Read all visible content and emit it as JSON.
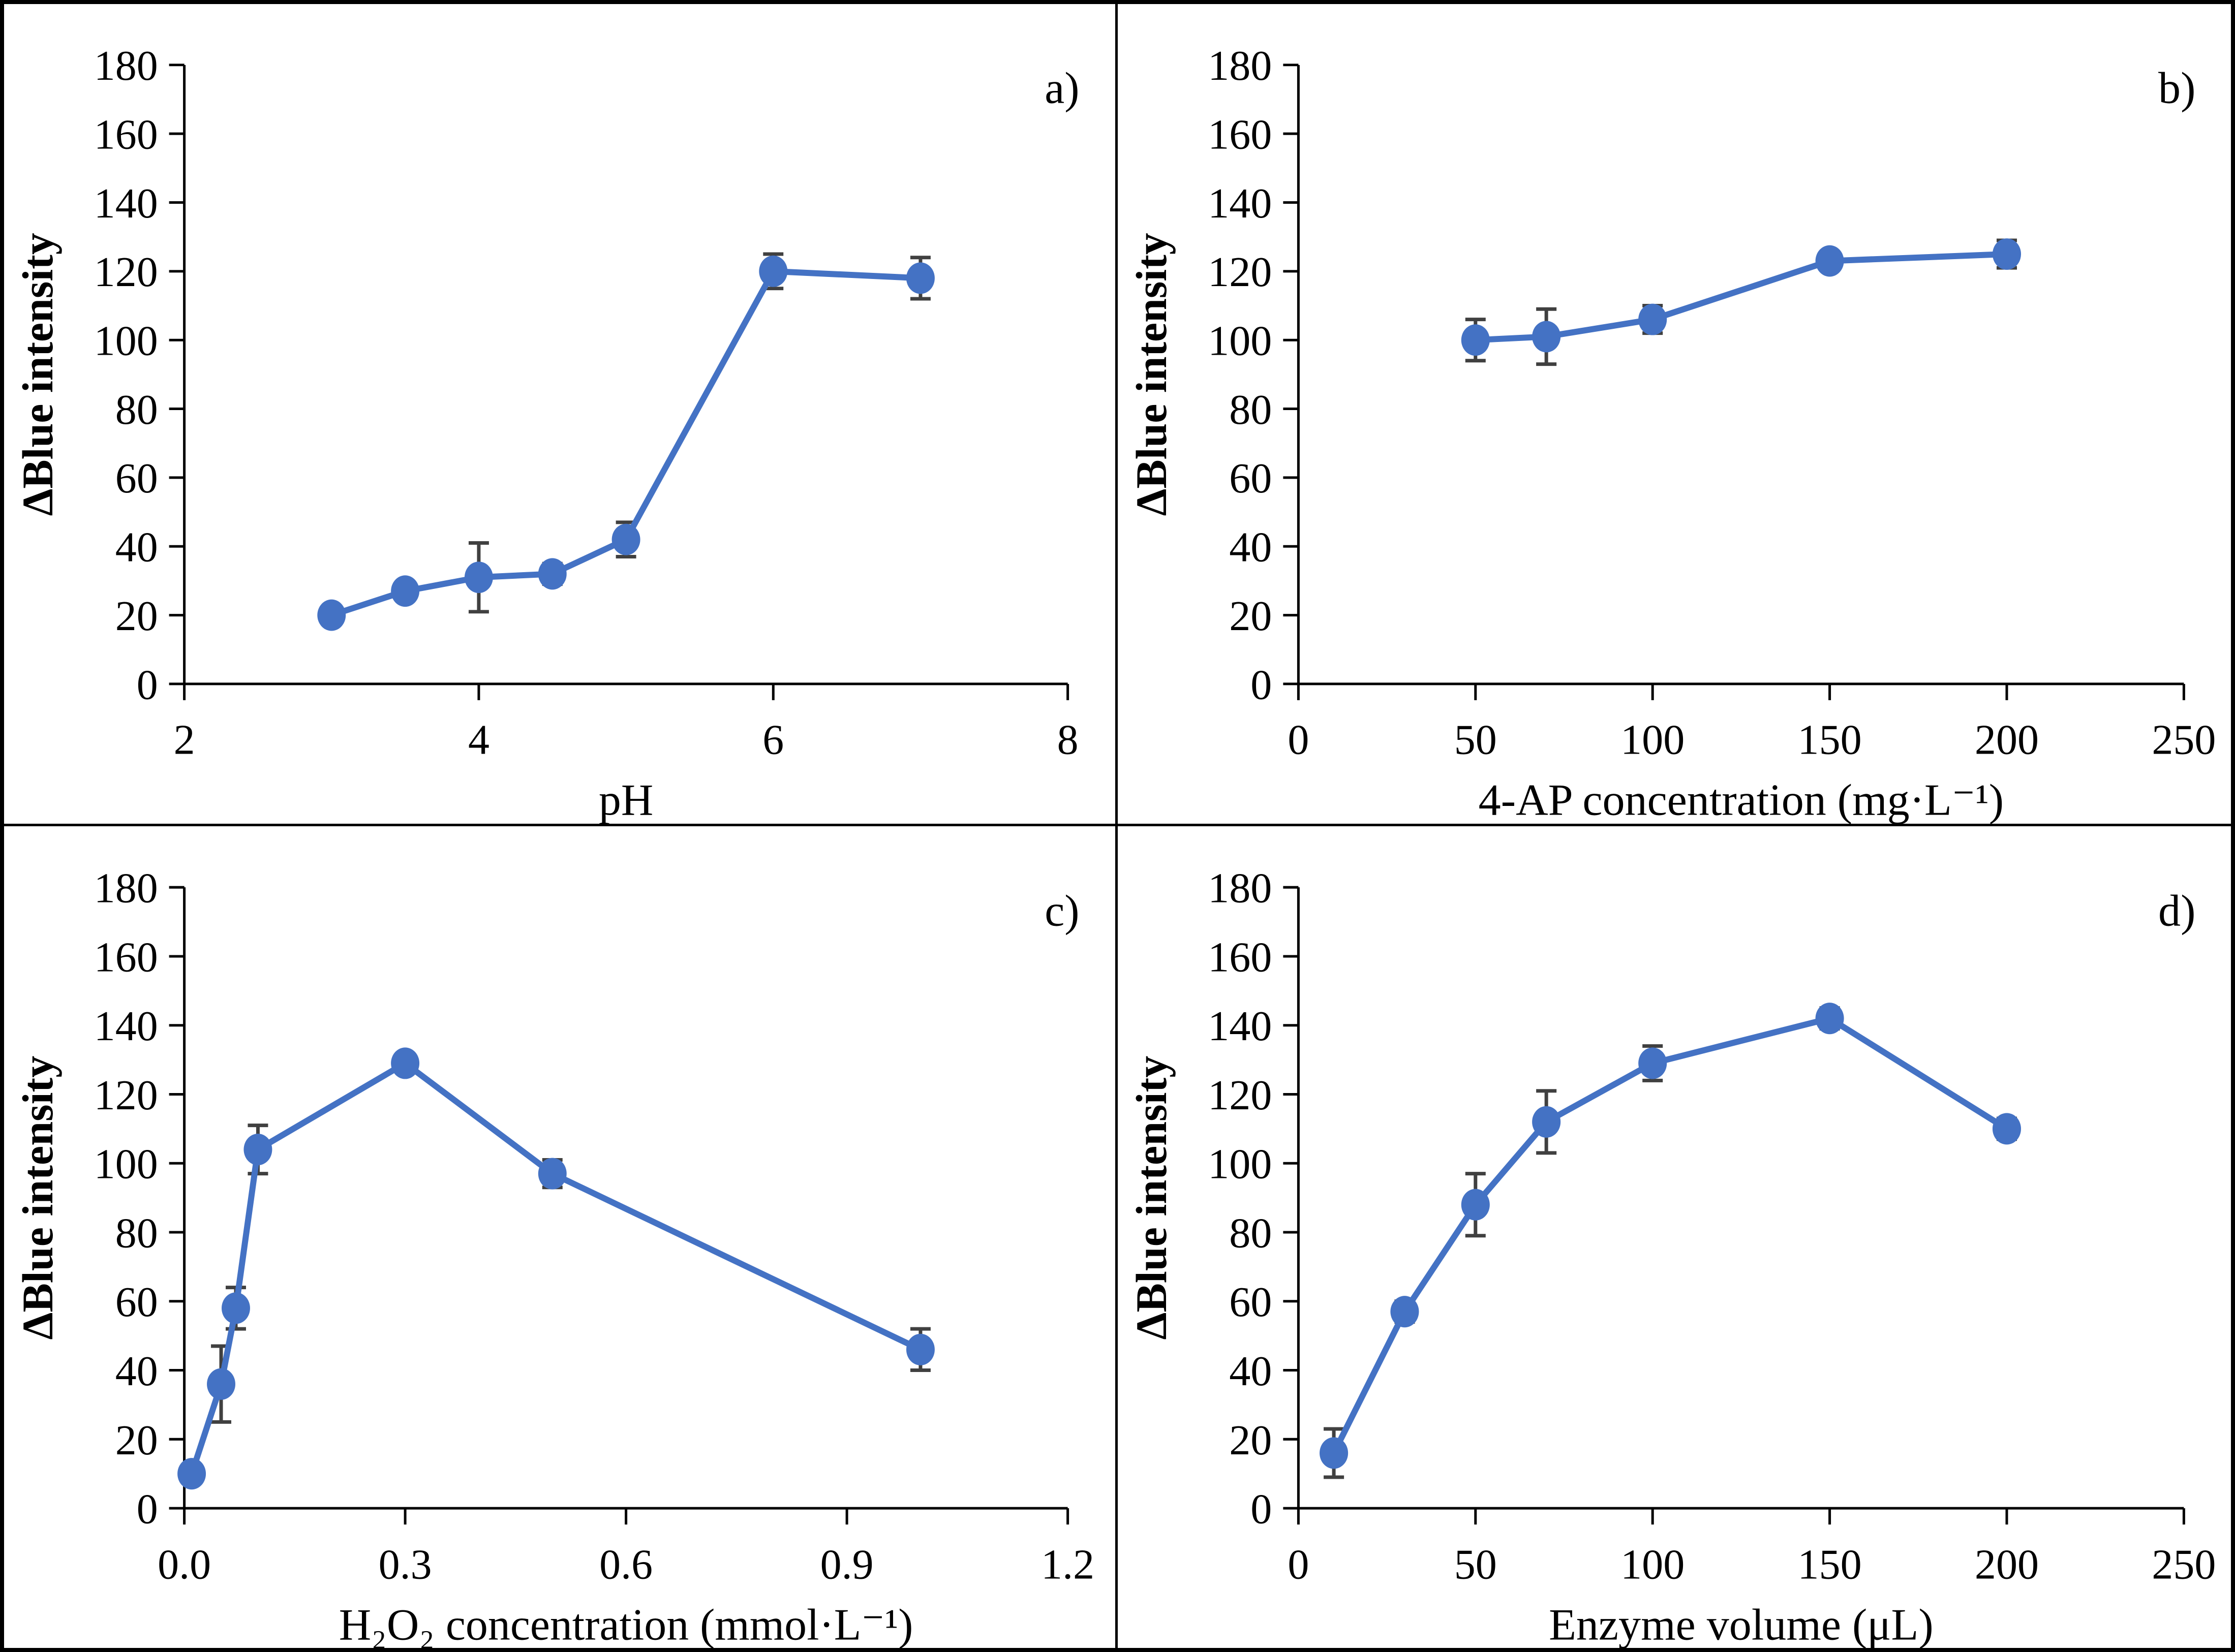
{
  "figure": {
    "background": "#ffffff",
    "border_color": "#000000",
    "panel_count": 4
  },
  "colors": {
    "series": "#4472C4",
    "marker_fill": "#4472C4",
    "error_bar": "#404040",
    "axis": "#000000",
    "text": "#000000"
  },
  "chart_data": [
    {
      "type": "line",
      "panel_label": "a)",
      "xlabel": "pH",
      "ylabel": "ΔBlue intensity",
      "x": [
        3,
        3.5,
        4,
        4.5,
        5,
        6,
        7
      ],
      "y": [
        20,
        27,
        31,
        32,
        42,
        120,
        118
      ],
      "yerr": [
        2,
        2,
        10,
        3,
        5,
        5,
        6
      ],
      "xlim": [
        2,
        8
      ],
      "ylim": [
        0,
        180
      ],
      "xticks": [
        2,
        4,
        6,
        8
      ],
      "xtick_labels": [
        "2",
        "4",
        "6",
        "8"
      ],
      "yticks": [
        0,
        20,
        40,
        60,
        80,
        100,
        120,
        140,
        160,
        180
      ],
      "ytick_labels": [
        "0",
        "20",
        "40",
        "60",
        "80",
        "100",
        "120",
        "140",
        "160",
        "180"
      ],
      "grid": false,
      "legend": null,
      "marker": "circle"
    },
    {
      "type": "line",
      "panel_label": "b)",
      "xlabel": "4-AP concentration (mg·L⁻¹)",
      "ylabel": "ΔBlue intensity",
      "x": [
        50,
        70,
        100,
        150,
        200
      ],
      "y": [
        100,
        101,
        106,
        123,
        125
      ],
      "yerr": [
        6,
        8,
        4,
        2,
        4
      ],
      "xlim": [
        0,
        250
      ],
      "ylim": [
        0,
        180
      ],
      "xticks": [
        0,
        50,
        100,
        150,
        200,
        250
      ],
      "xtick_labels": [
        "0",
        "50",
        "100",
        "150",
        "200",
        "250"
      ],
      "yticks": [
        0,
        20,
        40,
        60,
        80,
        100,
        120,
        140,
        160,
        180
      ],
      "ytick_labels": [
        "0",
        "20",
        "40",
        "60",
        "80",
        "100",
        "120",
        "140",
        "160",
        "180"
      ],
      "grid": false,
      "legend": null,
      "marker": "circle"
    },
    {
      "type": "line",
      "panel_label": "c)",
      "xlabel": "H₂O₂ concentration (mmol·L⁻¹)",
      "ylabel": "ΔBlue intensity",
      "x": [
        0.01,
        0.05,
        0.07,
        0.1,
        0.3,
        0.5,
        1.0
      ],
      "y": [
        10,
        36,
        58,
        104,
        129,
        97,
        46
      ],
      "yerr": [
        2,
        11,
        6,
        7,
        2,
        4,
        6
      ],
      "xlim": [
        0,
        1.2
      ],
      "ylim": [
        0,
        180
      ],
      "xticks": [
        0,
        0.3,
        0.6,
        0.9,
        1.2
      ],
      "xtick_labels": [
        "0.0",
        "0.3",
        "0.6",
        "0.9",
        "1.2"
      ],
      "yticks": [
        0,
        20,
        40,
        60,
        80,
        100,
        120,
        140,
        160,
        180
      ],
      "ytick_labels": [
        "0",
        "20",
        "40",
        "60",
        "80",
        "100",
        "120",
        "140",
        "160",
        "180"
      ],
      "grid": false,
      "legend": null,
      "marker": "circle"
    },
    {
      "type": "line",
      "panel_label": "d)",
      "xlabel": "Enzyme volume (μL)",
      "ylabel": "ΔBlue intensity",
      "x": [
        10,
        30,
        50,
        70,
        100,
        150,
        200
      ],
      "y": [
        16,
        57,
        88,
        112,
        129,
        142,
        110
      ],
      "yerr": [
        7,
        3,
        9,
        9,
        5,
        3,
        3
      ],
      "xlim": [
        0,
        250
      ],
      "ylim": [
        0,
        180
      ],
      "xticks": [
        0,
        50,
        100,
        150,
        200,
        250
      ],
      "xtick_labels": [
        "0",
        "50",
        "100",
        "150",
        "200",
        "250"
      ],
      "yticks": [
        0,
        20,
        40,
        60,
        80,
        100,
        120,
        140,
        160,
        180
      ],
      "ytick_labels": [
        "0",
        "20",
        "40",
        "60",
        "80",
        "100",
        "120",
        "140",
        "160",
        "180"
      ],
      "grid": false,
      "legend": null,
      "marker": "circle"
    }
  ]
}
